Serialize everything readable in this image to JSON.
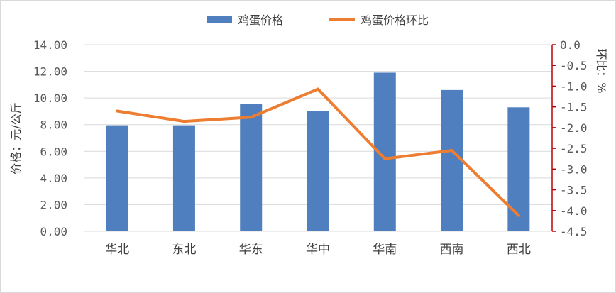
{
  "chart_data": {
    "type": "bar",
    "categories": [
      "华北",
      "东北",
      "华东",
      "华中",
      "华南",
      "西南",
      "西北"
    ],
    "series": [
      {
        "name": "鸡蛋价格",
        "chart_type": "bar",
        "axis": "left",
        "values": [
          7.95,
          7.95,
          9.55,
          9.05,
          11.9,
          10.6,
          9.3
        ],
        "color": "#4F7FBE"
      },
      {
        "name": "鸡蛋价格环比",
        "chart_type": "line",
        "axis": "right",
        "values": [
          -1.6,
          -1.85,
          -1.75,
          -1.07,
          -2.75,
          -2.55,
          -4.12
        ],
        "color": "#ED7D31"
      }
    ],
    "ylabel": "价格：元/公斤",
    "y2label": "环比：%",
    "ylim": [
      0,
      14
    ],
    "y2lim": [
      -4.5,
      0
    ],
    "yticks": [
      "14.00",
      "12.00",
      "10.00",
      "8.00",
      "6.00",
      "4.00",
      "2.00",
      "0.00"
    ],
    "y2ticks": [
      "0.0",
      "-0.5",
      "-1.0",
      "-1.5",
      "-2.0",
      "-2.5",
      "-3.0",
      "-3.5",
      "-4.0",
      "-4.5"
    ],
    "grid": true,
    "legend": "top-center",
    "axis_colors": {
      "right_axis": "#C00000",
      "grid": "#D9D9D9",
      "baseline": "#D9D9D9"
    }
  }
}
